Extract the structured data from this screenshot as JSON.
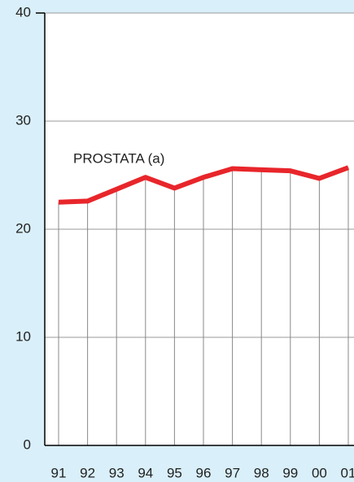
{
  "chart_data": {
    "type": "line",
    "annotation": "PROSTATA  (a)",
    "categories": [
      "91",
      "92",
      "93",
      "94",
      "95",
      "96",
      "97",
      "98",
      "99",
      "00",
      "01"
    ],
    "series": [
      {
        "name": "PROSTATA",
        "color": "#e8262b",
        "values": [
          22.5,
          22.6,
          23.7,
          24.8,
          23.8,
          24.8,
          25.6,
          25.5,
          25.4,
          24.7,
          25.7
        ]
      }
    ],
    "ylim": [
      0,
      40
    ],
    "yticks": [
      0,
      10,
      20,
      30,
      40
    ],
    "grid": true,
    "drop_lines": true
  }
}
